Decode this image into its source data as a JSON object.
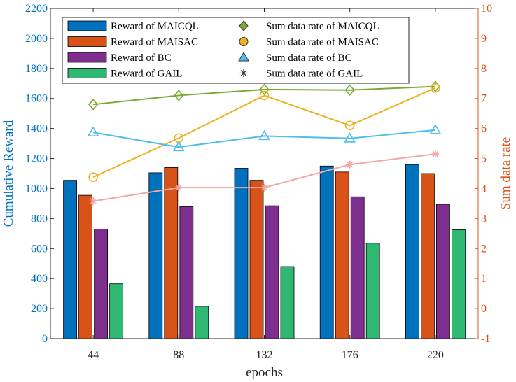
{
  "chart_data": {
    "type": "bar",
    "categories": [
      "44",
      "88",
      "132",
      "176",
      "220"
    ],
    "xlabel": "epochs",
    "ylabel": "Cumulative Reward",
    "ylim": [
      0,
      2200
    ],
    "yticks": [
      "0",
      "200",
      "400",
      "600",
      "800",
      "1000",
      "1200",
      "1400",
      "1600",
      "1800",
      "2000",
      "2200"
    ],
    "y2label": "Sum data rate",
    "y2lim": [
      -1,
      10
    ],
    "y2ticks": [
      "-1",
      "0",
      "1",
      "2",
      "3",
      "4",
      "5",
      "6",
      "7",
      "8",
      "9",
      "10"
    ],
    "grid": false,
    "legend_position": "top",
    "bar_series": [
      {
        "name": "Reward of MAICQL",
        "color": "#0072BD",
        "values": [
          1055,
          1105,
          1135,
          1150,
          1160
        ]
      },
      {
        "name": "Reward of MAISAC",
        "color": "#D95319",
        "values": [
          955,
          1140,
          1055,
          1110,
          1100
        ]
      },
      {
        "name": "Reward of BC",
        "color": "#7E2F8E",
        "values": [
          730,
          880,
          885,
          945,
          895
        ]
      },
      {
        "name": "Reward of GAIL",
        "color": "#2EB872",
        "values": [
          365,
          215,
          480,
          635,
          725
        ]
      }
    ],
    "line_series": [
      {
        "name": "Sum data rate of MAICQL",
        "color": "#77AC30",
        "marker": "diamond",
        "values": [
          6.8,
          7.1,
          7.3,
          7.28,
          7.4
        ]
      },
      {
        "name": "Sum data rate of MAISAC",
        "color": "#EDB120",
        "marker": "circle",
        "values": [
          4.38,
          5.68,
          7.1,
          6.1,
          7.35
        ]
      },
      {
        "name": "Sum data rate of BC",
        "color": "#4DBEEE",
        "marker": "triangle",
        "values": [
          5.87,
          5.38,
          5.75,
          5.67,
          5.95
        ]
      },
      {
        "name": "Sum data rate of GAIL",
        "color": "#F4A6A6",
        "marker": "asterisk",
        "values": [
          3.58,
          4.03,
          4.03,
          4.8,
          5.15
        ]
      }
    ]
  }
}
